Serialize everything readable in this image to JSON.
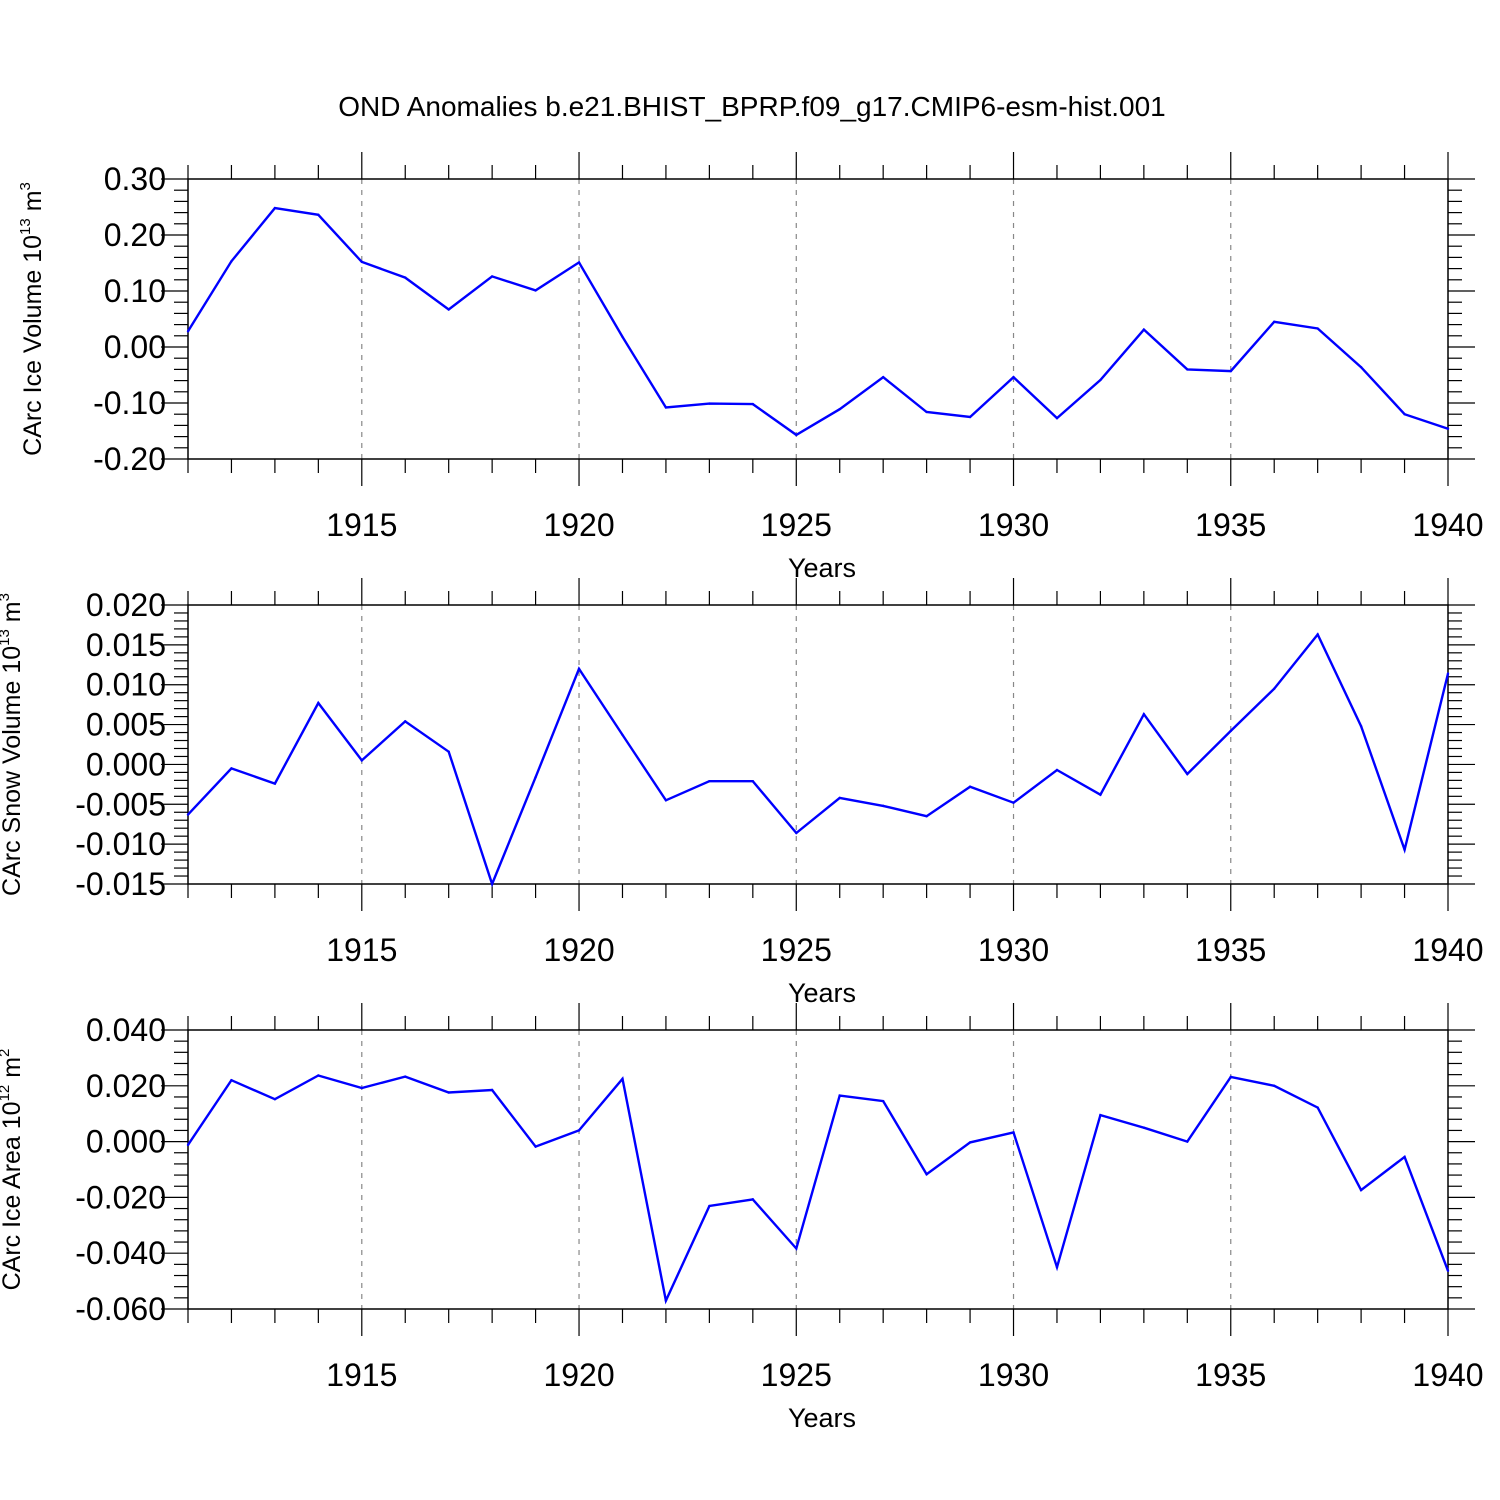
{
  "title": "OND Anomalies b.e21.BHIST_BPRP.f09_g17.CMIP6-esm-hist.001",
  "colors": {
    "line": "#0000ff",
    "axis": "#000000",
    "grid": "#888888"
  },
  "chart_data": [
    {
      "type": "line",
      "xlabel": "Years",
      "ylabel": {
        "text": "CArc Ice Volume 10",
        "exp": "13",
        "unit": " m",
        "unit_exp": "3"
      },
      "x": [
        1911,
        1912,
        1913,
        1914,
        1915,
        1916,
        1917,
        1918,
        1919,
        1920,
        1921,
        1922,
        1923,
        1924,
        1925,
        1926,
        1927,
        1928,
        1929,
        1930,
        1931,
        1932,
        1933,
        1934,
        1935,
        1936,
        1937,
        1938,
        1939,
        1940
      ],
      "values": [
        0.028,
        0.153,
        0.248,
        0.236,
        0.152,
        0.124,
        0.067,
        0.126,
        0.101,
        0.151,
        0.018,
        -0.108,
        -0.101,
        -0.102,
        -0.157,
        -0.111,
        -0.054,
        -0.116,
        -0.125,
        -0.054,
        -0.127,
        -0.059,
        0.031,
        -0.04,
        -0.043,
        0.045,
        0.033,
        -0.036,
        -0.12,
        -0.146
      ],
      "xlim": [
        1911,
        1940
      ],
      "ylim": [
        -0.2,
        0.3
      ],
      "yticks": [
        "0.30",
        "0.20",
        "0.10",
        "0.00",
        "-0.10",
        "-0.20"
      ],
      "ytick_values": [
        0.3,
        0.2,
        0.1,
        0.0,
        -0.1,
        -0.2
      ],
      "xticks": [
        "1915",
        "1920",
        "1925",
        "1930",
        "1935",
        "1940"
      ],
      "xtick_values": [
        1915,
        1920,
        1925,
        1930,
        1935,
        1940
      ],
      "grid": "vertical dashed"
    },
    {
      "type": "line",
      "xlabel": "Years",
      "ylabel": {
        "text": "CArc Snow Volume 10",
        "exp": "13",
        "unit": " m",
        "unit_exp": "3"
      },
      "x": [
        1911,
        1912,
        1913,
        1914,
        1915,
        1916,
        1917,
        1918,
        1919,
        1920,
        1921,
        1922,
        1923,
        1924,
        1925,
        1926,
        1927,
        1928,
        1929,
        1930,
        1931,
        1932,
        1933,
        1934,
        1935,
        1936,
        1937,
        1938,
        1939,
        1940
      ],
      "values": [
        -0.0063,
        -0.0005,
        -0.0024,
        0.0077,
        0.0005,
        0.0054,
        0.0016,
        -0.015,
        -0.0016,
        0.012,
        0.0037,
        -0.0045,
        -0.0021,
        -0.0021,
        -0.0086,
        -0.0042,
        -0.0052,
        -0.0065,
        -0.0028,
        -0.0048,
        -0.0007,
        -0.0038,
        0.0063,
        -0.0012,
        0.0042,
        0.0095,
        0.0163,
        0.0048,
        -0.0107,
        0.0114
      ],
      "xlim": [
        1911,
        1940
      ],
      "ylim": [
        -0.015,
        0.02
      ],
      "yticks": [
        "0.020",
        "0.015",
        "0.010",
        "0.005",
        "0.000",
        "-0.005",
        "-0.010",
        "-0.015"
      ],
      "ytick_values": [
        0.02,
        0.015,
        0.01,
        0.005,
        0.0,
        -0.005,
        -0.01,
        -0.015
      ],
      "xticks": [
        "1915",
        "1920",
        "1925",
        "1930",
        "1935",
        "1940"
      ],
      "xtick_values": [
        1915,
        1920,
        1925,
        1930,
        1935,
        1940
      ],
      "grid": "vertical dashed"
    },
    {
      "type": "line",
      "xlabel": "Years",
      "ylabel": {
        "text": "CArc Ice Area 10",
        "exp": "12",
        "unit": " m",
        "unit_exp": "2"
      },
      "x": [
        1911,
        1912,
        1913,
        1914,
        1915,
        1916,
        1917,
        1918,
        1919,
        1920,
        1921,
        1922,
        1923,
        1924,
        1925,
        1926,
        1927,
        1928,
        1929,
        1930,
        1931,
        1932,
        1933,
        1934,
        1935,
        1936,
        1937,
        1938,
        1939,
        1940
      ],
      "values": [
        -0.0012,
        0.022,
        0.0152,
        0.0237,
        0.0192,
        0.0233,
        0.0176,
        0.0185,
        -0.0018,
        0.004,
        0.0225,
        -0.057,
        -0.0231,
        -0.0207,
        -0.0383,
        0.0165,
        0.0145,
        -0.0117,
        -0.0003,
        0.0033,
        -0.045,
        0.0095,
        0.005,
        0.0,
        0.0232,
        0.02,
        0.0122,
        -0.0174,
        -0.0055,
        -0.0463
      ],
      "xlim": [
        1911,
        1940
      ],
      "ylim": [
        -0.06,
        0.04
      ],
      "yticks": [
        "0.040",
        "0.020",
        "0.000",
        "-0.020",
        "-0.040",
        "-0.060"
      ],
      "ytick_values": [
        0.04,
        0.02,
        0.0,
        -0.02,
        -0.04,
        -0.06
      ],
      "xticks": [
        "1915",
        "1920",
        "1925",
        "1930",
        "1935",
        "1940"
      ],
      "xtick_values": [
        1915,
        1920,
        1925,
        1930,
        1935,
        1940
      ],
      "grid": "vertical dashed"
    }
  ]
}
